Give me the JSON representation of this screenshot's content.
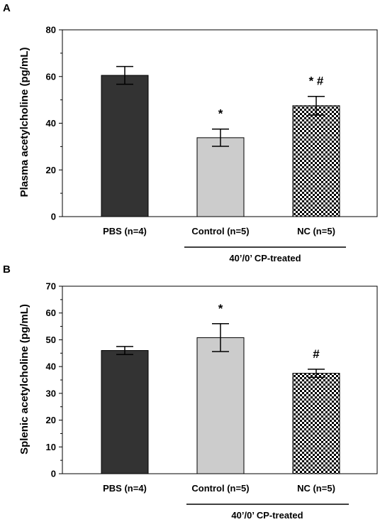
{
  "chart_data": [
    {
      "panel": "A",
      "type": "bar",
      "ylabel": "Plasma acetylcholine (pg/mL)",
      "ylim": [
        0,
        80
      ],
      "yticks": [
        0,
        20,
        40,
        60,
        80
      ],
      "categories": [
        "PBS (n=4)",
        "Control (n=5)",
        "NC (n=5)"
      ],
      "values": [
        60.5,
        33.8,
        47.5
      ],
      "errors": [
        3.8,
        3.7,
        4.0
      ],
      "annotations": [
        "",
        "*",
        "* #"
      ],
      "bar_colors": [
        "#333333",
        "#cccccc",
        "checkered"
      ],
      "group_label": "40’/0’ CP-treated",
      "grid": false
    },
    {
      "panel": "B",
      "type": "bar",
      "ylabel": "Splenic acetylcholine (pg/mL)",
      "ylim": [
        0,
        70
      ],
      "yticks": [
        0,
        10,
        20,
        30,
        40,
        50,
        60,
        70
      ],
      "categories": [
        "PBS (n=4)",
        "Control (n=5)",
        "NC (n=5)"
      ],
      "values": [
        46.0,
        50.8,
        37.5
      ],
      "errors": [
        1.5,
        5.2,
        1.5
      ],
      "annotations": [
        "",
        "*",
        "#"
      ],
      "bar_colors": [
        "#333333",
        "#cccccc",
        "checkered"
      ],
      "group_label": "40’/0’ CP-treated",
      "grid": false
    }
  ]
}
